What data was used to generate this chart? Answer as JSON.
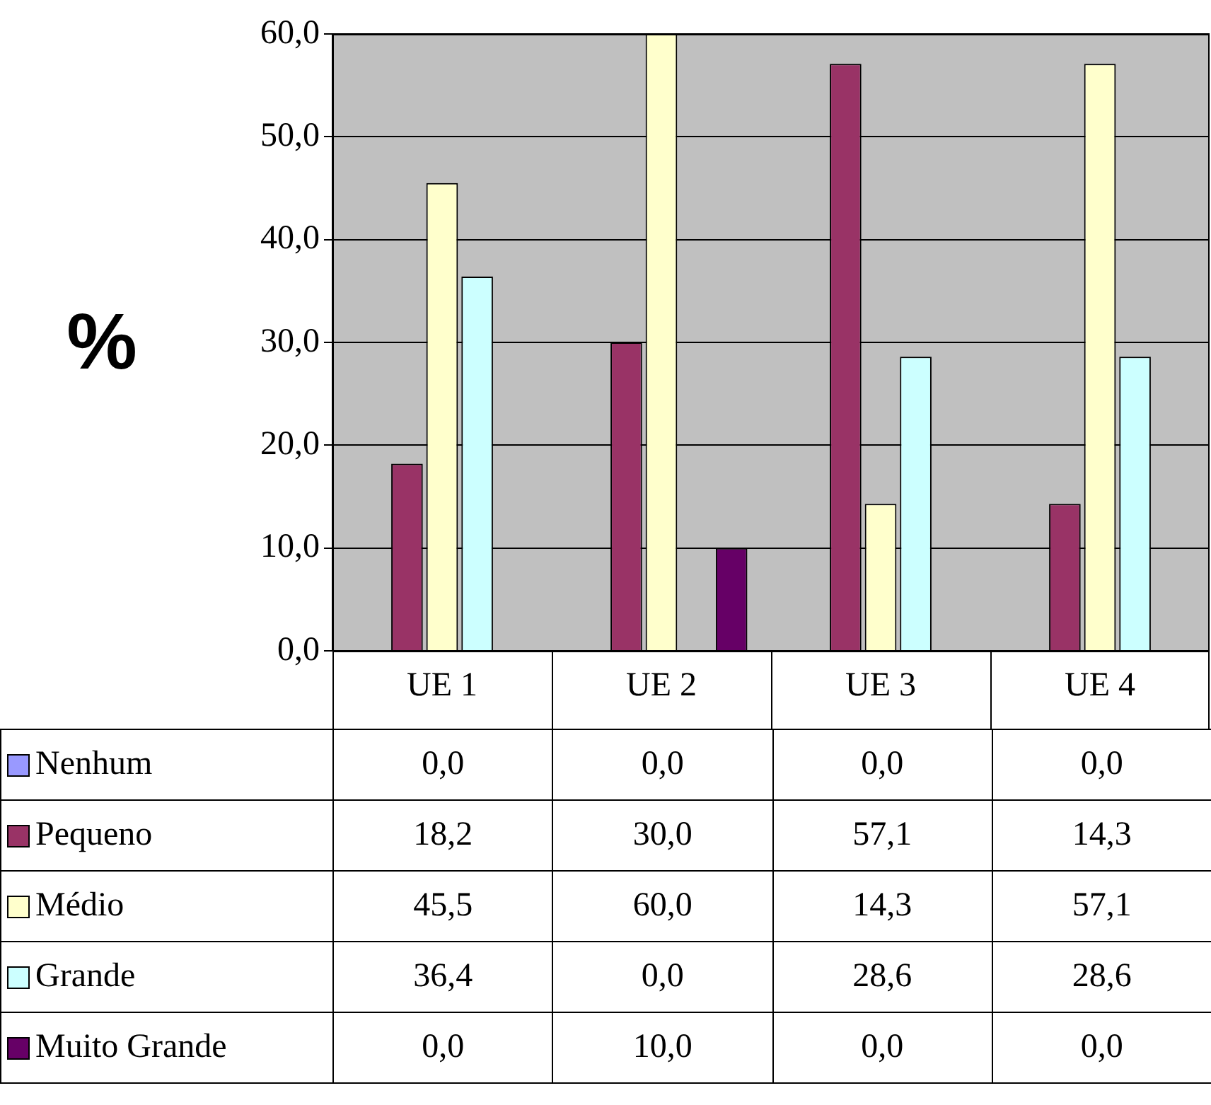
{
  "chart_data": {
    "type": "bar",
    "ylabel": "%",
    "categories": [
      "UE 1",
      "UE 2",
      "UE 3",
      "UE 4"
    ],
    "series": [
      {
        "name": "Nenhum",
        "color": "#9999ff",
        "values": [
          0,
          0,
          0,
          0
        ],
        "value_labels": [
          "0,0",
          "0,0",
          "0,0",
          "0,0"
        ]
      },
      {
        "name": "Pequeno",
        "color": "#993366",
        "values": [
          18.2,
          30,
          57.1,
          14.3
        ],
        "value_labels": [
          "18,2",
          "30,0",
          "57,1",
          "14,3"
        ]
      },
      {
        "name": "Médio",
        "color": "#ffffcc",
        "values": [
          45.5,
          60,
          14.3,
          57.1
        ],
        "value_labels": [
          "45,5",
          "60,0",
          "14,3",
          "57,1"
        ]
      },
      {
        "name": "Grande",
        "color": "#ccffff",
        "values": [
          36.4,
          0,
          28.6,
          28.6
        ],
        "value_labels": [
          "36,4",
          "0,0",
          "28,6",
          "28,6"
        ]
      },
      {
        "name": "Muito Grande",
        "color": "#660066",
        "values": [
          0,
          10,
          0,
          0
        ],
        "value_labels": [
          "0,0",
          "10,0",
          "0,0",
          "0,0"
        ]
      }
    ],
    "ylim": [
      0,
      60
    ],
    "yticks": [
      {
        "value": 0,
        "label": "0,0"
      },
      {
        "value": 10,
        "label": "10,0"
      },
      {
        "value": 20,
        "label": "20,0"
      },
      {
        "value": 30,
        "label": "30,0"
      },
      {
        "value": 40,
        "label": "40,0"
      },
      {
        "value": 50,
        "label": "50,0"
      },
      {
        "value": 60,
        "label": "60,0"
      }
    ],
    "grid": "y",
    "legend": "bottom"
  }
}
